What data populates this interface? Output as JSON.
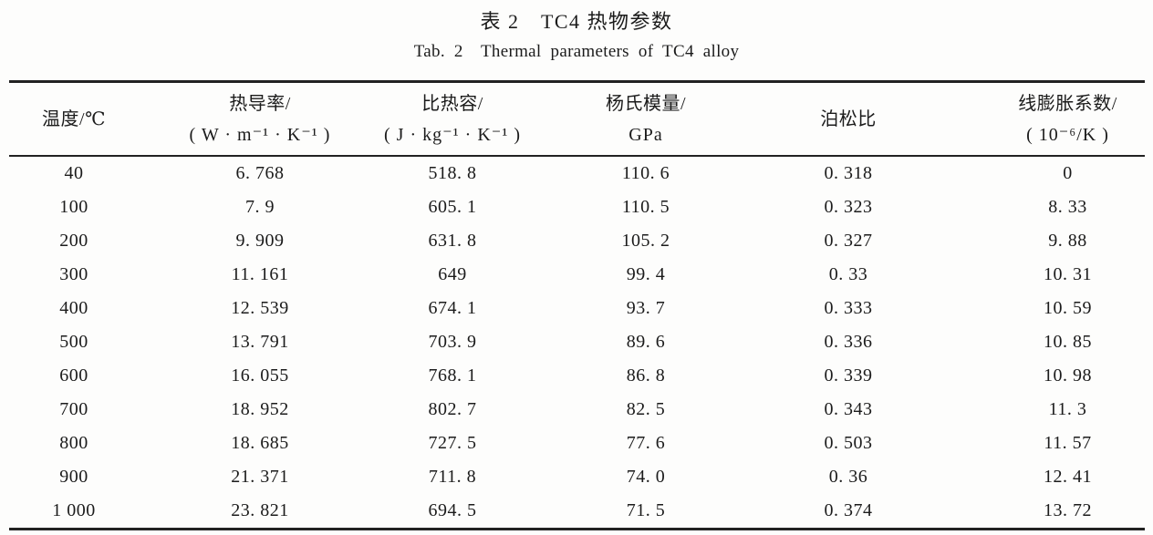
{
  "page": {
    "background": "#fdfdfc",
    "text_color": "#1b1b1b",
    "rule_color": "#222222"
  },
  "caption": {
    "zh": "表 2　TC4 热物参数",
    "en": "Tab. 2　Thermal parameters of TC4 alloy"
  },
  "table": {
    "headers": [
      {
        "line1": "温度/℃",
        "line2": ""
      },
      {
        "line1": "热导率/",
        "line2": "( W · m⁻¹ · K⁻¹ )"
      },
      {
        "line1": "比热容/",
        "line2": "( J · kg⁻¹ · K⁻¹ )"
      },
      {
        "line1": "杨氏模量/",
        "line2": "GPa"
      },
      {
        "line1": "泊松比",
        "line2": ""
      },
      {
        "line1": "线膨胀系数/",
        "line2": "( 10⁻⁶/K )"
      }
    ],
    "rows": [
      [
        "40",
        "6. 768",
        "518. 8",
        "110. 6",
        "0. 318",
        "0"
      ],
      [
        "100",
        "7. 9",
        "605. 1",
        "110. 5",
        "0. 323",
        "8. 33"
      ],
      [
        "200",
        "9. 909",
        "631. 8",
        "105. 2",
        "0. 327",
        "9. 88"
      ],
      [
        "300",
        "11. 161",
        "649",
        "99. 4",
        "0. 33",
        "10. 31"
      ],
      [
        "400",
        "12. 539",
        "674. 1",
        "93. 7",
        "0. 333",
        "10. 59"
      ],
      [
        "500",
        "13. 791",
        "703. 9",
        "89. 6",
        "0. 336",
        "10. 85"
      ],
      [
        "600",
        "16. 055",
        "768. 1",
        "86. 8",
        "0. 339",
        "10. 98"
      ],
      [
        "700",
        "18. 952",
        "802. 7",
        "82. 5",
        "0. 343",
        "11. 3"
      ],
      [
        "800",
        "18. 685",
        "727. 5",
        "77. 6",
        "0. 503",
        "11. 57"
      ],
      [
        "900",
        "21. 371",
        "711. 8",
        "74. 0",
        "0. 36",
        "12. 41"
      ],
      [
        "1 000",
        "23. 821",
        "694. 5",
        "71. 5",
        "0. 374",
        "13. 72"
      ]
    ]
  }
}
